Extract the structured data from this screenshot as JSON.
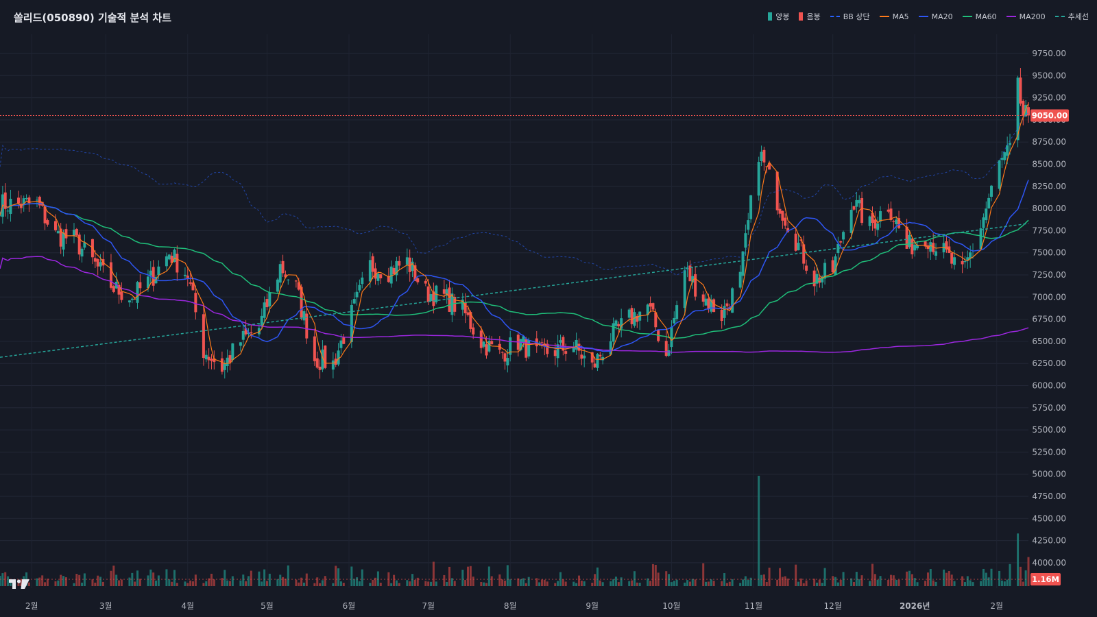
{
  "title": "쏠리드(050890) 기술적 분석 차트",
  "legend": [
    {
      "label": "양봉",
      "kind": "box",
      "color": "#26a69a"
    },
    {
      "label": "음봉",
      "kind": "box",
      "color": "#ef5350"
    },
    {
      "label": "BB 상단",
      "kind": "dash",
      "color": "#2962ff"
    },
    {
      "label": "MA5",
      "kind": "line",
      "color": "#ff7a1a"
    },
    {
      "label": "MA20",
      "kind": "line",
      "color": "#2e56f5"
    },
    {
      "label": "MA60",
      "kind": "line",
      "color": "#1fbf7a"
    },
    {
      "label": "MA200",
      "kind": "line",
      "color": "#9c27e0"
    },
    {
      "label": "추세선",
      "kind": "dash",
      "color": "#26a69a"
    }
  ],
  "price_badge": "9050.00",
  "volume_badge": "1.16M",
  "chart_data": {
    "type": "candlestick",
    "ylim": [
      3850,
      9950
    ],
    "y_ticks": [
      "9750.00",
      "9500.00",
      "9250.00",
      "9000.00",
      "8750.00",
      "8500.00",
      "8250.00",
      "8000.00",
      "7750.00",
      "7500.00",
      "7250.00",
      "7000.00",
      "6750.00",
      "6500.00",
      "6250.00",
      "6000.00",
      "5750.00",
      "5500.00",
      "5250.00",
      "5000.00",
      "4750.00",
      "4500.00",
      "4250.00",
      "4000.00"
    ],
    "x_labels": [
      {
        "label": "2월",
        "date": "2025-02-01"
      },
      {
        "label": "3월",
        "date": "2025-03-01"
      },
      {
        "label": "4월",
        "date": "2025-04-01"
      },
      {
        "label": "5월",
        "date": "2025-05-01"
      },
      {
        "label": "6월",
        "date": "2025-06-01"
      },
      {
        "label": "7월",
        "date": "2025-07-01"
      },
      {
        "label": "8월",
        "date": "2025-08-01"
      },
      {
        "label": "9월",
        "date": "2025-09-01"
      },
      {
        "label": "10월",
        "date": "2025-10-01"
      },
      {
        "label": "11월",
        "date": "2025-11-01"
      },
      {
        "label": "12월",
        "date": "2025-12-01"
      },
      {
        "label": "2026년",
        "date": "2026-01-01"
      },
      {
        "label": "2월",
        "date": "2026-02-01"
      }
    ],
    "close_trend": [
      [
        "2025-02-03",
        8050
      ],
      [
        "2025-02-10",
        7700
      ],
      [
        "2025-02-17",
        7650
      ],
      [
        "2025-02-24",
        7400
      ],
      [
        "2025-03-04",
        7100
      ],
      [
        "2025-03-11",
        7000
      ],
      [
        "2025-03-18",
        7200
      ],
      [
        "2025-03-25",
        7500
      ],
      [
        "2025-04-01",
        7250
      ],
      [
        "2025-04-07",
        6400
      ],
      [
        "2025-04-14",
        6200
      ],
      [
        "2025-04-21",
        6500
      ],
      [
        "2025-04-28",
        6650
      ],
      [
        "2025-05-06",
        7350
      ],
      [
        "2025-05-12",
        7100
      ],
      [
        "2025-05-19",
        6300
      ],
      [
        "2025-05-26",
        6250
      ],
      [
        "2025-06-02",
        6800
      ],
      [
        "2025-06-09",
        7350
      ],
      [
        "2025-06-16",
        7300
      ],
      [
        "2025-06-23",
        7400
      ],
      [
        "2025-06-30",
        7050
      ],
      [
        "2025-07-07",
        7000
      ],
      [
        "2025-07-14",
        6850
      ],
      [
        "2025-07-21",
        6500
      ],
      [
        "2025-07-28",
        6350
      ],
      [
        "2025-08-04",
        6500
      ],
      [
        "2025-08-11",
        6350
      ],
      [
        "2025-08-18",
        6400
      ],
      [
        "2025-08-25",
        6450
      ],
      [
        "2025-09-01",
        6200
      ],
      [
        "2025-09-08",
        6550
      ],
      [
        "2025-09-15",
        6750
      ],
      [
        "2025-09-22",
        6900
      ],
      [
        "2025-09-29",
        6350
      ],
      [
        "2025-10-06",
        7300
      ],
      [
        "2025-10-13",
        7000
      ],
      [
        "2025-10-20",
        6800
      ],
      [
        "2025-10-27",
        7200
      ],
      [
        "2025-11-03",
        8650
      ],
      [
        "2025-11-10",
        8100
      ],
      [
        "2025-11-17",
        7650
      ],
      [
        "2025-11-24",
        7200
      ],
      [
        "2025-12-01",
        7300
      ],
      [
        "2025-12-08",
        8100
      ],
      [
        "2025-12-15",
        7800
      ],
      [
        "2025-12-22",
        8050
      ],
      [
        "2025-12-29",
        7550
      ],
      [
        "2026-01-05",
        7700
      ],
      [
        "2026-01-12",
        7500
      ],
      [
        "2026-01-19",
        7250
      ],
      [
        "2026-01-26",
        7800
      ],
      [
        "2026-02-02",
        8500
      ],
      [
        "2026-02-06",
        8650
      ],
      [
        "2026-02-09",
        9350
      ],
      [
        "2026-02-11",
        9050
      ]
    ],
    "volume_range_millions": [
      0,
      4.4
    ],
    "volume_spikes": [
      {
        "date": "2025-11-03",
        "value": 4.4
      },
      {
        "date": "2026-02-09",
        "value": 2.1
      }
    ],
    "last_close": 9050,
    "last_volume": "1.16M",
    "series": [
      {
        "name": "BB 상단",
        "type": "dashed"
      },
      {
        "name": "MA5"
      },
      {
        "name": "MA20"
      },
      {
        "name": "MA60"
      },
      {
        "name": "MA200"
      },
      {
        "name": "추세선",
        "type": "dashed"
      }
    ]
  }
}
